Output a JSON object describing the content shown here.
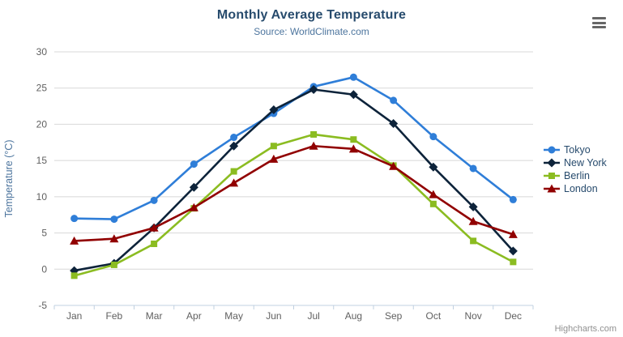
{
  "chart": {
    "title": "Monthly Average Temperature",
    "subtitle": "Source: WorldClimate.com",
    "credit": "Highcharts.com",
    "export_menu_icon": "hamburger-icon",
    "colors": {
      "title": "#274b6d",
      "subtitle": "#4d759e",
      "axis_labels": "#606060",
      "axis_line": "#c0d0e0",
      "grid_line": "#d8d8d8",
      "legend_text": "#274b6d"
    }
  },
  "chart_data": {
    "type": "line",
    "title": "Monthly Average Temperature",
    "subtitle": "Source: WorldClimate.com",
    "categories": [
      "Jan",
      "Feb",
      "Mar",
      "Apr",
      "May",
      "Jun",
      "Jul",
      "Aug",
      "Sep",
      "Oct",
      "Nov",
      "Dec"
    ],
    "series": [
      {
        "name": "Tokyo",
        "color": "#2f7ed8",
        "marker": "circle",
        "values": [
          7.0,
          6.9,
          9.5,
          14.5,
          18.2,
          21.5,
          25.2,
          26.5,
          23.3,
          18.3,
          13.9,
          9.6
        ]
      },
      {
        "name": "New York",
        "color": "#0d233a",
        "marker": "diamond",
        "values": [
          -0.2,
          0.8,
          5.7,
          11.3,
          17.0,
          22.0,
          24.8,
          24.1,
          20.1,
          14.1,
          8.6,
          2.5
        ]
      },
      {
        "name": "Berlin",
        "color": "#8bbc21",
        "marker": "square",
        "values": [
          -0.9,
          0.6,
          3.5,
          8.4,
          13.5,
          17.0,
          18.6,
          17.9,
          14.3,
          9.0,
          3.9,
          1.0
        ]
      },
      {
        "name": "London",
        "color": "#910000",
        "marker": "triangle",
        "values": [
          3.9,
          4.2,
          5.7,
          8.5,
          11.9,
          15.2,
          17.0,
          16.6,
          14.2,
          10.3,
          6.6,
          4.8
        ]
      }
    ],
    "xlabel": "",
    "ylabel": "Temperature (°C)",
    "ylim": [
      -5,
      30
    ],
    "yticks": [
      -5,
      0,
      5,
      10,
      15,
      20,
      25,
      30
    ],
    "grid": true,
    "legend_position": "right"
  }
}
